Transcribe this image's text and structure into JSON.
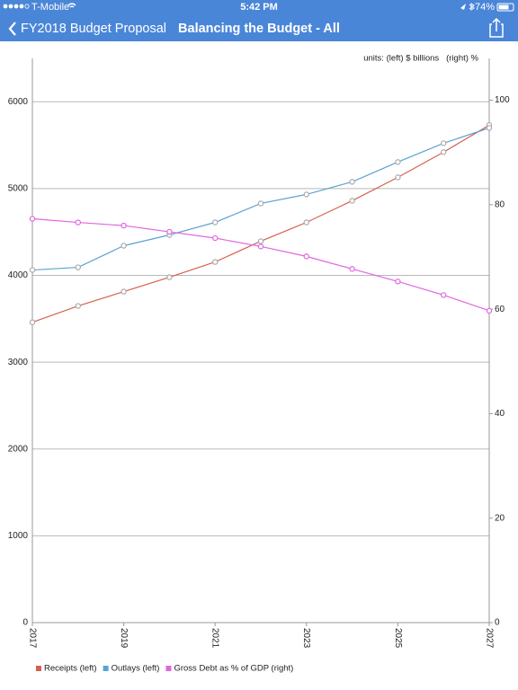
{
  "status_bar": {
    "carrier": "T-Mobile",
    "time": "5:42 PM",
    "battery": "74%"
  },
  "nav_bar": {
    "back": "FY2018 Budget Proposal",
    "title": "Balancing the Budget - All"
  },
  "chart_data": {
    "type": "line",
    "annotation": "units: (left) $ billions   (right) %",
    "x": [
      2017,
      2018,
      2019,
      2020,
      2021,
      2022,
      2023,
      2024,
      2025,
      2026,
      2027
    ],
    "xlim": [
      2017,
      2027
    ],
    "xticks": [
      2017,
      2019,
      2021,
      2023,
      2025,
      2027
    ],
    "ylim": [
      0,
      6500
    ],
    "yticks": [
      0,
      1000,
      2000,
      3000,
      4000,
      5000,
      6000
    ],
    "y2lim": [
      0,
      108
    ],
    "y2ticks": [
      0,
      20,
      40,
      60,
      80,
      100
    ],
    "grid": true,
    "legend": "bottom",
    "series": [
      {
        "name": "Receipts (left)",
        "color": "#d6604d",
        "values": [
          3460,
          3648,
          3813,
          3979,
          4155,
          4394,
          4611,
          4860,
          5130,
          5420,
          5731
        ]
      },
      {
        "name": "Outlays (left)",
        "color": "#5ba3d0",
        "values": [
          4062,
          4093,
          4342,
          4466,
          4611,
          4829,
          4933,
          5078,
          5306,
          5523,
          5699
        ]
      },
      {
        "name": "Gross Debt as % of GDP (right)",
        "color": "#e066e0",
        "axis": "y2",
        "values": [
          77.3,
          76.6,
          76.0,
          74.8,
          73.6,
          72.0,
          70.1,
          67.7,
          65.3,
          62.7,
          59.7
        ]
      }
    ]
  }
}
